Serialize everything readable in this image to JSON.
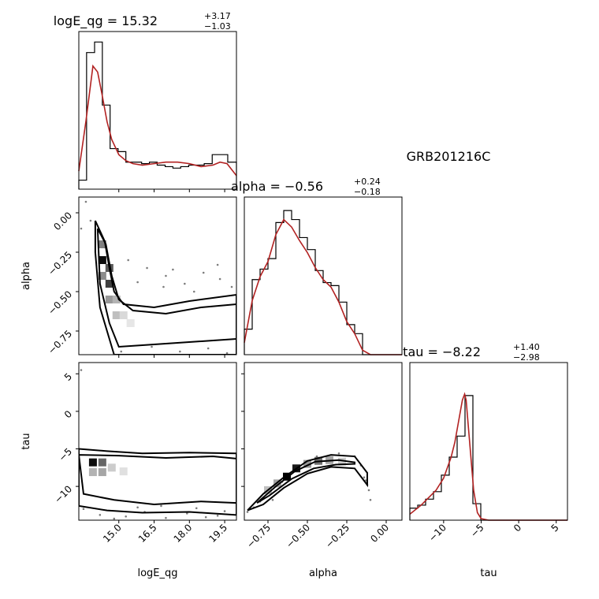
{
  "figure_label": "GRB201216C",
  "chart_data": [
    {
      "type": "histogram",
      "panel": "logE_qg-marginal",
      "title": {
        "base": "logE_qg = 15.32",
        "sup": "+3.17",
        "sub": "−1.03"
      },
      "xlim": [
        13.3,
        20.0
      ],
      "x_ticks": [
        "15.0",
        "16.5",
        "18.0",
        "19.5"
      ],
      "x_tick_values": [
        15.0,
        16.5,
        18.0,
        19.5
      ],
      "bin_edges": [
        13.3,
        13.63,
        13.97,
        14.3,
        14.63,
        14.97,
        15.3,
        15.63,
        15.97,
        16.3,
        16.63,
        16.97,
        17.3,
        17.63,
        17.97,
        18.3,
        18.63,
        18.97,
        19.3,
        19.63,
        20.0
      ],
      "counts": [
        0.06,
        0.91,
        0.98,
        0.56,
        0.27,
        0.25,
        0.18,
        0.18,
        0.17,
        0.18,
        0.16,
        0.15,
        0.14,
        0.15,
        0.16,
        0.16,
        0.17,
        0.23,
        0.23,
        0.18
      ],
      "kde_x": [
        13.3,
        13.6,
        13.9,
        14.1,
        14.3,
        14.5,
        14.7,
        15.0,
        15.3,
        15.6,
        16.0,
        16.5,
        17.0,
        17.5,
        18.0,
        18.5,
        19.0,
        19.3,
        19.6,
        20.0
      ],
      "kde_y": [
        0.12,
        0.45,
        0.82,
        0.78,
        0.62,
        0.45,
        0.33,
        0.23,
        0.19,
        0.17,
        0.16,
        0.17,
        0.18,
        0.18,
        0.17,
        0.15,
        0.16,
        0.18,
        0.17,
        0.09
      ]
    },
    {
      "type": "histogram",
      "panel": "alpha-marginal",
      "title": {
        "base": "alpha = −0.56",
        "sup": "+0.24",
        "sub": "−0.18"
      },
      "xlim": [
        -0.9,
        0.1
      ],
      "bin_edges": [
        -0.9,
        -0.85,
        -0.8,
        -0.75,
        -0.7,
        -0.65,
        -0.6,
        -0.55,
        -0.5,
        -0.45,
        -0.4,
        -0.35,
        -0.3,
        -0.25,
        -0.2,
        -0.15,
        -0.1,
        -0.05,
        0.0,
        0.05,
        0.1
      ],
      "counts": [
        0.17,
        0.5,
        0.57,
        0.64,
        0.88,
        0.96,
        0.9,
        0.78,
        0.7,
        0.56,
        0.48,
        0.46,
        0.35,
        0.2,
        0.14,
        0.0,
        0.0,
        0.0,
        0.0,
        0.0
      ],
      "kde_x": [
        -0.9,
        -0.85,
        -0.8,
        -0.75,
        -0.7,
        -0.65,
        -0.6,
        -0.55,
        -0.5,
        -0.45,
        -0.4,
        -0.35,
        -0.3,
        -0.25,
        -0.2,
        -0.15,
        -0.1,
        -0.05,
        0.0,
        0.1
      ],
      "kde_y": [
        0.08,
        0.36,
        0.52,
        0.62,
        0.8,
        0.9,
        0.85,
        0.76,
        0.68,
        0.58,
        0.5,
        0.45,
        0.35,
        0.22,
        0.14,
        0.03,
        0.0,
        0.0,
        0.0,
        0.0
      ]
    },
    {
      "type": "histogram",
      "panel": "tau-marginal",
      "title": {
        "base": "tau = −8.22",
        "sup": "+1.40",
        "sub": "−2.98"
      },
      "xlim": [
        -14.5,
        6.5
      ],
      "x_ticks": [
        "−10",
        "−5",
        "0",
        "5"
      ],
      "x_tick_values": [
        -10,
        -5,
        0,
        5
      ],
      "bin_edges": [
        -14.5,
        -13.45,
        -12.4,
        -11.35,
        -10.3,
        -9.25,
        -8.2,
        -7.15,
        -6.1,
        -5.05,
        -4.0,
        -2.95,
        -1.9,
        -0.85,
        0.2,
        1.25,
        2.3,
        3.35,
        4.4,
        5.45,
        6.5
      ],
      "counts": [
        0.08,
        0.1,
        0.14,
        0.19,
        0.3,
        0.42,
        0.56,
        0.83,
        0.11,
        0.0,
        0.0,
        0.0,
        0.0,
        0.0,
        0.0,
        0.0,
        0.0,
        0.0,
        0.0,
        0.0
      ],
      "kde_x": [
        -14.5,
        -13,
        -12,
        -11,
        -10,
        -9,
        -8.5,
        -8,
        -7.5,
        -7.2,
        -7,
        -6.5,
        -6,
        -5.5,
        -5,
        -4,
        -2,
        0,
        3,
        6.5
      ],
      "kde_y": [
        0.04,
        0.1,
        0.15,
        0.2,
        0.28,
        0.42,
        0.52,
        0.66,
        0.8,
        0.84,
        0.8,
        0.5,
        0.2,
        0.05,
        0.01,
        0.0,
        0.0,
        0.0,
        0.0,
        0.0
      ]
    },
    {
      "type": "heatmap",
      "panel": "alpha-vs-logE_qg",
      "xlim": [
        13.3,
        20.0
      ],
      "ylim": [
        -0.9,
        0.1
      ],
      "x_ticks": [
        "15.0",
        "16.5",
        "18.0",
        "19.5"
      ],
      "x_tick_values": [
        15.0,
        16.5,
        18.0,
        19.5
      ],
      "y_ticks": [
        "0.00",
        "−0.25",
        "−0.50",
        "−0.75"
      ],
      "y_tick_values": [
        0.0,
        -0.25,
        -0.5,
        -0.75
      ],
      "cells": [
        {
          "x": 14.3,
          "y": -0.2,
          "v": 0.5
        },
        {
          "x": 14.3,
          "y": -0.3,
          "v": 0.95
        },
        {
          "x": 14.3,
          "y": -0.4,
          "v": 0.45
        },
        {
          "x": 14.6,
          "y": -0.35,
          "v": 0.65
        },
        {
          "x": 14.6,
          "y": -0.45,
          "v": 0.75
        },
        {
          "x": 14.6,
          "y": -0.55,
          "v": 0.4
        },
        {
          "x": 14.9,
          "y": -0.55,
          "v": 0.3
        },
        {
          "x": 14.9,
          "y": -0.65,
          "v": 0.25
        },
        {
          "x": 15.2,
          "y": -0.65,
          "v": 0.15
        },
        {
          "x": 15.5,
          "y": -0.7,
          "v": 0.1
        }
      ],
      "contours": [
        [
          [
            14.0,
            -0.05
          ],
          [
            14.4,
            -0.18
          ],
          [
            14.6,
            -0.35
          ],
          [
            14.8,
            -0.5
          ],
          [
            15.2,
            -0.58
          ],
          [
            16.5,
            -0.6
          ],
          [
            18.0,
            -0.56
          ],
          [
            20.0,
            -0.52
          ],
          [
            20.0,
            -0.9
          ],
          [
            14.8,
            -0.9
          ],
          [
            14.2,
            -0.6
          ],
          [
            14.0,
            -0.25
          ],
          [
            14.0,
            -0.05
          ]
        ],
        [
          [
            14.1,
            -0.1
          ],
          [
            14.45,
            -0.2
          ],
          [
            14.7,
            -0.4
          ],
          [
            15.0,
            -0.55
          ],
          [
            15.6,
            -0.62
          ],
          [
            17.0,
            -0.64
          ],
          [
            18.5,
            -0.6
          ],
          [
            20.0,
            -0.58
          ],
          [
            20.0,
            -0.8
          ],
          [
            16.0,
            -0.84
          ],
          [
            15.0,
            -0.85
          ],
          [
            14.6,
            -0.7
          ],
          [
            14.2,
            -0.45
          ],
          [
            14.1,
            -0.1
          ]
        ]
      ],
      "scatter_points": [
        [
          13.4,
          -0.1
        ],
        [
          13.6,
          0.07
        ],
        [
          13.8,
          -0.05
        ],
        [
          15.4,
          -0.3
        ],
        [
          16.2,
          -0.35
        ],
        [
          17.0,
          -0.4
        ],
        [
          17.8,
          -0.45
        ],
        [
          18.6,
          -0.38
        ],
        [
          19.3,
          -0.42
        ],
        [
          15.8,
          -0.44
        ],
        [
          16.9,
          -0.47
        ],
        [
          18.2,
          -0.5
        ],
        [
          19.8,
          -0.47
        ],
        [
          16.4,
          -0.85
        ],
        [
          17.6,
          -0.88
        ],
        [
          18.8,
          -0.86
        ],
        [
          19.6,
          -0.89
        ],
        [
          15.1,
          -0.88
        ],
        [
          19.2,
          -0.33
        ],
        [
          17.3,
          -0.36
        ]
      ]
    },
    {
      "type": "heatmap",
      "panel": "tau-vs-logE_qg",
      "xlim": [
        13.3,
        20.0
      ],
      "ylim": [
        -14.5,
        6.5
      ],
      "x_ticks": [
        "15.0",
        "16.5",
        "18.0",
        "19.5"
      ],
      "x_tick_values": [
        15.0,
        16.5,
        18.0,
        19.5
      ],
      "y_ticks": [
        "5",
        "0",
        "−5",
        "−10"
      ],
      "y_tick_values": [
        5,
        0,
        -5,
        -10
      ],
      "cells": [
        {
          "x": 13.9,
          "y": -6.8,
          "v": 0.95
        },
        {
          "x": 14.3,
          "y": -6.8,
          "v": 0.6
        },
        {
          "x": 14.3,
          "y": -8.1,
          "v": 0.35
        },
        {
          "x": 13.9,
          "y": -8.1,
          "v": 0.3
        },
        {
          "x": 14.7,
          "y": -7.5,
          "v": 0.2
        },
        {
          "x": 15.2,
          "y": -8.0,
          "v": 0.12
        }
      ],
      "contours": [
        [
          [
            13.3,
            -5.0
          ],
          [
            14.5,
            -5.3
          ],
          [
            16.0,
            -5.6
          ],
          [
            18.0,
            -5.5
          ],
          [
            20.0,
            -5.6
          ],
          [
            20.0,
            -13.8
          ],
          [
            18.0,
            -13.4
          ],
          [
            16.0,
            -13.5
          ],
          [
            14.5,
            -13.2
          ],
          [
            13.3,
            -12.6
          ],
          [
            13.3,
            -5.0
          ]
        ],
        [
          [
            13.3,
            -5.8
          ],
          [
            15.0,
            -5.9
          ],
          [
            17.0,
            -6.2
          ],
          [
            19.0,
            -6.0
          ],
          [
            20.0,
            -6.3
          ],
          [
            20.0,
            -12.2
          ],
          [
            18.5,
            -12.0
          ],
          [
            16.5,
            -12.4
          ],
          [
            14.8,
            -11.8
          ],
          [
            13.5,
            -11.0
          ],
          [
            13.3,
            -5.8
          ]
        ]
      ],
      "scatter_points": [
        [
          13.5,
          -13.0
        ],
        [
          14.2,
          -13.8
        ],
        [
          15.3,
          -14.0
        ],
        [
          16.1,
          -13.4
        ],
        [
          17.0,
          -14.2
        ],
        [
          17.9,
          -13.6
        ],
        [
          18.7,
          -14.1
        ],
        [
          19.5,
          -13.3
        ],
        [
          13.4,
          5.5
        ],
        [
          15.8,
          -12.8
        ],
        [
          16.8,
          -12.6
        ],
        [
          18.3,
          -12.9
        ],
        [
          19.2,
          -13.9
        ],
        [
          14.8,
          -14.3
        ]
      ]
    },
    {
      "type": "heatmap",
      "panel": "tau-vs-alpha",
      "xlim": [
        -0.9,
        0.1
      ],
      "ylim": [
        -14.5,
        6.5
      ],
      "x_ticks": [
        "−0.75",
        "−0.50",
        "−0.25",
        "0.00"
      ],
      "x_tick_values": [
        -0.75,
        -0.5,
        -0.25,
        0.0
      ],
      "y_ticks": [
        "5",
        "0",
        "−5",
        "−10"
      ],
      "y_tick_values": [
        5,
        0,
        -5,
        -10
      ],
      "cells": [
        {
          "x": -0.63,
          "y": -8.7,
          "v": 1.0
        },
        {
          "x": -0.57,
          "y": -7.6,
          "v": 0.9
        },
        {
          "x": -0.69,
          "y": -9.6,
          "v": 0.35
        },
        {
          "x": -0.5,
          "y": -7.0,
          "v": 0.4
        },
        {
          "x": -0.43,
          "y": -6.6,
          "v": 0.55
        },
        {
          "x": -0.36,
          "y": -6.5,
          "v": 0.35
        },
        {
          "x": -0.75,
          "y": -10.5,
          "v": 0.25
        },
        {
          "x": -0.28,
          "y": -6.7,
          "v": 0.2
        }
      ],
      "contours": [
        [
          [
            -0.88,
            -13.2
          ],
          [
            -0.78,
            -11.0
          ],
          [
            -0.65,
            -8.8
          ],
          [
            -0.5,
            -6.6
          ],
          [
            -0.35,
            -5.8
          ],
          [
            -0.2,
            -6.0
          ],
          [
            -0.12,
            -8.2
          ],
          [
            -0.12,
            -9.8
          ],
          [
            -0.2,
            -7.6
          ],
          [
            -0.35,
            -7.4
          ],
          [
            -0.5,
            -8.3
          ],
          [
            -0.65,
            -10.2
          ],
          [
            -0.78,
            -12.4
          ],
          [
            -0.88,
            -13.2
          ]
        ],
        [
          [
            -0.82,
            -12.2
          ],
          [
            -0.7,
            -10.0
          ],
          [
            -0.58,
            -8.0
          ],
          [
            -0.45,
            -6.7
          ],
          [
            -0.3,
            -6.5
          ],
          [
            -0.2,
            -6.8
          ],
          [
            -0.2,
            -7.0
          ],
          [
            -0.32,
            -7.1
          ],
          [
            -0.46,
            -7.6
          ],
          [
            -0.6,
            -9.0
          ],
          [
            -0.74,
            -11.2
          ],
          [
            -0.82,
            -12.2
          ]
        ]
      ],
      "scatter_points": [
        [
          -0.88,
          -13.4
        ],
        [
          -0.84,
          -12.8
        ],
        [
          -0.8,
          -12.0
        ],
        [
          -0.14,
          -8.8
        ],
        [
          -0.12,
          -9.8
        ],
        [
          -0.11,
          -10.5
        ],
        [
          -0.1,
          -11.8
        ],
        [
          -0.16,
          -7.2
        ],
        [
          -0.2,
          -6.0
        ],
        [
          -0.3,
          -5.6
        ],
        [
          -0.44,
          -6.0
        ],
        [
          -0.72,
          -11.8
        ],
        [
          -0.66,
          -9.4
        ],
        [
          -0.13,
          -9.2
        ]
      ]
    }
  ],
  "axis_labels": {
    "logE_qg": "logE_qg",
    "alpha": "alpha",
    "tau": "tau"
  },
  "colors": {
    "kde": "#b22222",
    "hist": "#000000",
    "contour": "#000000"
  }
}
